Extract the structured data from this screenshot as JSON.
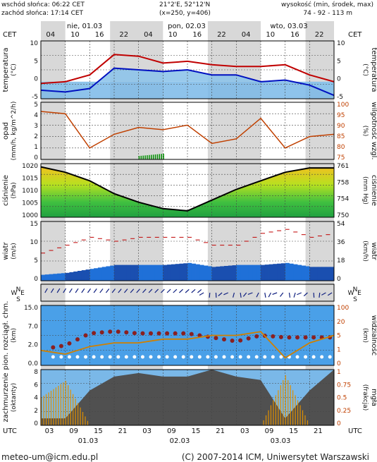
{
  "header": {
    "sunrise": "wschód słońca: 06:22 CET",
    "sunset": "zachód słońca: 17:14 CET",
    "coords": "21°2'E, 52°12'N",
    "grid": "(x=250, y=406)",
    "height_title": "wysokość (min, środek, max)",
    "height_values": "74 - 92 - 113 m"
  },
  "axis_top": {
    "tz": "CET",
    "days": [
      "nie, 01.03",
      "pon, 02.03",
      "wto, 03.03"
    ],
    "hours": [
      "04",
      "10",
      "16",
      "22",
      "04",
      "10",
      "16",
      "22",
      "04",
      "10",
      "16",
      "22"
    ]
  },
  "axis_bottom": {
    "tz": "UTC",
    "hours": [
      "03",
      "09",
      "15",
      "21",
      "03",
      "09",
      "15",
      "21",
      "03",
      "09",
      "15",
      "21"
    ],
    "dates": [
      "01.03",
      "02.03",
      "03.03"
    ]
  },
  "footer": {
    "email": "meteo-um@icm.edu.pl",
    "copyright": "(C) 2007-2014 ICM, Uniwersytet Warszawski"
  },
  "colors": {
    "temp_max": "#c00000",
    "temp_min": "#0010c0",
    "humidity": "#c04000",
    "rain": "#009000",
    "pressure_line": "#000000",
    "wind_line": "#c00000",
    "visibility": "#d08000",
    "fog": "#e09000"
  },
  "chart_data": [
    {
      "type": "line",
      "name": "temperatura",
      "left_label": [
        "temperatura",
        "(°C)"
      ],
      "right_label": [
        "temperatura",
        "(°C)"
      ],
      "ylim": [
        -5,
        12
      ],
      "ticks": [
        "10",
        "5",
        "0",
        "-5"
      ],
      "hours": [
        0,
        6,
        12,
        18,
        24,
        30,
        36,
        42,
        48,
        54,
        60,
        66,
        72
      ],
      "series": [
        {
          "name": "max",
          "values": [
            -0.5,
            0,
            2,
            8,
            7.5,
            5.5,
            6,
            5,
            4.5,
            4.5,
            5,
            2,
            0
          ]
        },
        {
          "name": "min",
          "values": [
            -2.5,
            -3,
            -2,
            4,
            3.5,
            3,
            3.5,
            2,
            2,
            0,
            0.5,
            -1,
            -4
          ]
        }
      ]
    },
    {
      "type": "line",
      "name": "opad",
      "left_label": [
        "opad",
        "(mm/h, kg/m^2/h)"
      ],
      "right_label": [
        "wilgotność wzgl.",
        "(%)"
      ],
      "ylim": [
        0,
        5
      ],
      "ticks": [
        "5",
        "4",
        "3",
        "2",
        "1",
        "0"
      ],
      "y2lim": [
        75,
        100
      ],
      "y2ticks": [
        "100",
        "95",
        "90",
        "85",
        "80",
        "75"
      ],
      "hours": [
        0,
        6,
        12,
        18,
        24,
        30,
        36,
        42,
        48,
        54,
        60,
        66,
        72
      ],
      "series": [
        {
          "name": "wilgotność",
          "values": [
            96,
            95,
            80,
            86,
            89,
            88,
            90,
            82,
            84,
            93,
            80,
            85,
            86
          ]
        }
      ],
      "rain": {
        "from": 24,
        "to": 30,
        "values": [
          0.3,
          0.5
        ]
      }
    },
    {
      "type": "area",
      "name": "ciśnienie",
      "left_label": [
        "ciśnienie",
        "(hPa)"
      ],
      "right_label": [
        "ciśnienie",
        "(mm Hg)"
      ],
      "ylim": [
        995,
        1020
      ],
      "ticks": [
        "1020",
        "1015",
        "1010",
        "1005",
        "1000"
      ],
      "y2ticks": [
        "761",
        "758",
        "754",
        "750"
      ],
      "hours": [
        0,
        6,
        12,
        18,
        24,
        30,
        36,
        42,
        48,
        54,
        60,
        66,
        72
      ],
      "series": [
        {
          "name": "ciśnienie",
          "values": [
            1018.5,
            1016,
            1012,
            1006,
            1002,
            999,
            998,
            1003,
            1008,
            1012,
            1016,
            1018,
            1018
          ]
        }
      ]
    },
    {
      "type": "bar",
      "name": "wiatr",
      "left_label": [
        "wiatr",
        "(m/s)"
      ],
      "right_label": [
        "wiatr",
        "(km/h)"
      ],
      "ylim": [
        0,
        15
      ],
      "ticks": [
        "15",
        "10",
        "5",
        "0"
      ],
      "y2ticks": [
        "54",
        "36",
        "18",
        "0"
      ],
      "hours": [
        0,
        6,
        12,
        18,
        24,
        30,
        36,
        42,
        48,
        54,
        60,
        66,
        72
      ],
      "series": [
        {
          "name": "prędkość",
          "values": [
            1.5,
            2,
            3,
            4,
            4,
            4,
            4.5,
            3.5,
            4,
            4,
            4.5,
            3.5,
            3.5
          ]
        },
        {
          "name": "porywy",
          "values": [
            7,
            9,
            11,
            10,
            11,
            11,
            11,
            9,
            9,
            12,
            13,
            11,
            12
          ]
        }
      ]
    },
    {
      "type": "scatter",
      "name": "kierunek",
      "left_label": [
        "N",
        "W",
        "E",
        "S"
      ],
      "right_label": [
        "N",
        "W",
        "E",
        "S"
      ]
    },
    {
      "type": "scatter",
      "name": "chmury",
      "left_label": [
        "pion. rozciągł. chm.",
        "(km)"
      ],
      "right_label": [
        "widzialność",
        "(km)"
      ],
      "ylim": [
        0,
        15
      ],
      "ticks": [
        "15.0",
        "7.0",
        "2.0",
        "0.0"
      ],
      "y2ticks": [
        "100",
        "20",
        "5",
        "1",
        "0"
      ],
      "hours": [
        0,
        6,
        12,
        18,
        24,
        30,
        36,
        42,
        48,
        54,
        60,
        66,
        72
      ],
      "series": [
        {
          "name": "widzialność",
          "values": [
            2,
            1.5,
            2.5,
            3,
            3,
            3.5,
            3.5,
            4,
            4,
            4.5,
            1,
            3,
            4
          ]
        },
        {
          "name": "górna granica",
          "values": [
            4,
            5,
            8,
            8.5,
            8,
            8,
            8,
            7,
            6,
            7.5,
            7,
            7,
            7
          ]
        }
      ]
    },
    {
      "type": "area",
      "name": "zachmurzenie",
      "left_label": [
        "zachmurzenie",
        "(oktanty)"
      ],
      "right_label": [
        "mgła",
        "(frakcja)"
      ],
      "ylim": [
        0,
        8
      ],
      "ticks": [
        "8",
        "6",
        "4",
        "2",
        "0"
      ],
      "y2lim": [
        0,
        1
      ],
      "y2ticks": [
        "1",
        "0.75",
        "0.5",
        "0.25",
        "0"
      ],
      "hours": [
        0,
        6,
        12,
        18,
        24,
        30,
        36,
        42,
        48,
        54,
        60,
        66,
        72
      ],
      "series": [
        {
          "name": "zachmurzenie",
          "values": [
            1,
            1,
            5,
            7,
            7.5,
            7,
            7,
            8,
            7,
            6.5,
            1,
            5,
            8
          ]
        },
        {
          "name": "mgła",
          "values": [
            0.5,
            0.8,
            0,
            0,
            0,
            0,
            0,
            0,
            0,
            0,
            0.9,
            0,
            0
          ]
        }
      ]
    }
  ]
}
